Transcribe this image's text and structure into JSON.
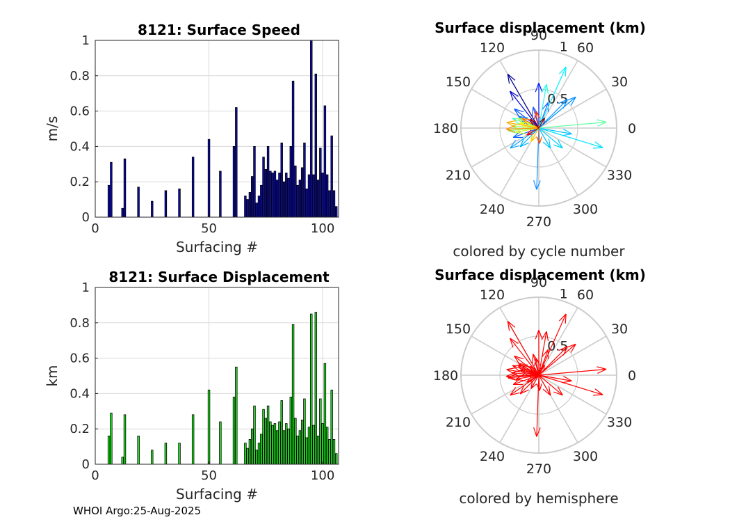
{
  "footer": "WHOI Argo:25-Aug-2025",
  "colors": {
    "speed_bar": "#0a0ab4",
    "disp_bar": "#22ee22",
    "hemisphere": "#ff0000",
    "grid": "#d9d9d9",
    "polar_grid": "#cccccc"
  },
  "chart_data": [
    {
      "type": "bar",
      "title": "8121: Surface Speed",
      "xlabel": "Surfacing #",
      "ylabel": "m/s",
      "xlim": [
        0,
        107
      ],
      "ylim": [
        0,
        1
      ],
      "xticks": [
        "0",
        "50",
        "100"
      ],
      "yticks": [
        "0",
        "0.2",
        "0.4",
        "0.6",
        "0.8",
        "1"
      ],
      "x": [
        6,
        7,
        12,
        13,
        19,
        25,
        31,
        37,
        43,
        50,
        55,
        61,
        62,
        66,
        67,
        68,
        69,
        70,
        71,
        72,
        73,
        74,
        75,
        76,
        77,
        78,
        79,
        80,
        81,
        82,
        83,
        84,
        85,
        86,
        87,
        88,
        89,
        90,
        91,
        92,
        93,
        94,
        95,
        96,
        97,
        98,
        99,
        100,
        101,
        102,
        103,
        104,
        105,
        106,
        107
      ],
      "values": [
        0.18,
        0.31,
        0.05,
        0.33,
        0.17,
        0.09,
        0.15,
        0.16,
        0.34,
        0.44,
        0.26,
        0.4,
        0.62,
        0.12,
        0.1,
        0.14,
        0.23,
        0.4,
        0.08,
        0.12,
        0.18,
        0.34,
        0.27,
        0.4,
        0.26,
        0.25,
        0.26,
        0.21,
        0.25,
        0.42,
        0.2,
        0.25,
        0.22,
        0.4,
        0.77,
        0.29,
        0.18,
        0.21,
        0.28,
        0.42,
        0.16,
        0.24,
        1.0,
        0.24,
        0.81,
        0.21,
        0.39,
        0.25,
        0.63,
        0.24,
        0.15,
        0.46,
        0.15,
        0.06,
        0.0
      ]
    },
    {
      "type": "bar",
      "title": "8121: Surface Displacement",
      "xlabel": "Surfacing #",
      "ylabel": "km",
      "xlim": [
        0,
        107
      ],
      "ylim": [
        0,
        1
      ],
      "xticks": [
        "0",
        "50",
        "100"
      ],
      "yticks": [
        "0",
        "0.2",
        "0.4",
        "0.6",
        "0.8",
        "1"
      ],
      "x": [
        6,
        7,
        12,
        13,
        19,
        25,
        31,
        37,
        43,
        50,
        55,
        61,
        62,
        66,
        67,
        68,
        69,
        70,
        71,
        72,
        73,
        74,
        75,
        76,
        77,
        78,
        79,
        80,
        81,
        82,
        83,
        84,
        85,
        86,
        87,
        88,
        89,
        90,
        91,
        92,
        93,
        94,
        95,
        96,
        97,
        98,
        99,
        100,
        101,
        102,
        103,
        104,
        105,
        106,
        107
      ],
      "values": [
        0.16,
        0.29,
        0.04,
        0.28,
        0.16,
        0.08,
        0.12,
        0.12,
        0.28,
        0.42,
        0.24,
        0.38,
        0.55,
        0.12,
        0.09,
        0.14,
        0.2,
        0.33,
        0.08,
        0.12,
        0.17,
        0.31,
        0.26,
        0.33,
        0.24,
        0.22,
        0.23,
        0.19,
        0.24,
        0.36,
        0.19,
        0.23,
        0.2,
        0.38,
        0.79,
        0.26,
        0.16,
        0.19,
        0.25,
        0.37,
        0.15,
        0.21,
        0.85,
        0.22,
        0.86,
        0.16,
        0.37,
        0.23,
        0.57,
        0.21,
        0.14,
        0.42,
        0.14,
        0.06,
        0.0
      ]
    },
    {
      "type": "polar",
      "title": "Surface displacement (km)",
      "caption": "colored by cycle number",
      "rmax": 1,
      "rticks": [
        "0.5",
        "1"
      ],
      "theta_labels": [
        "0",
        "30",
        "60",
        "90",
        "120",
        "150",
        "180",
        "210",
        "240",
        "270",
        "300",
        "330"
      ],
      "vectors": [
        {
          "angle": 120,
          "r": 0.8,
          "color": "#00008f"
        },
        {
          "angle": 128,
          "r": 0.6,
          "color": "#0000cc"
        },
        {
          "angle": 90,
          "r": 0.58,
          "color": "#0020ff"
        },
        {
          "angle": 142,
          "r": 0.4,
          "color": "#0050ff"
        },
        {
          "angle": 70,
          "r": 0.35,
          "color": "#2060ff"
        },
        {
          "angle": 200,
          "r": 0.35,
          "color": "#0060ff"
        },
        {
          "angle": 150,
          "r": 0.3,
          "color": "#0070ff"
        },
        {
          "angle": 105,
          "r": 0.28,
          "color": "#1a50ff"
        },
        {
          "angle": 45,
          "r": 0.52,
          "color": "#0090ff"
        },
        {
          "angle": 40,
          "r": 0.62,
          "color": "#0090ff"
        },
        {
          "angle": 268,
          "r": 0.79,
          "color": "#1090ff"
        },
        {
          "angle": 215,
          "r": 0.45,
          "color": "#10a0ff"
        },
        {
          "angle": 225,
          "r": 0.34,
          "color": "#00b0ff"
        },
        {
          "angle": 350,
          "r": 0.43,
          "color": "#00c0ff"
        },
        {
          "angle": 300,
          "r": 0.3,
          "color": "#00c8ff"
        },
        {
          "angle": 320,
          "r": 0.4,
          "color": "#00d0ff"
        },
        {
          "angle": 343,
          "r": 0.86,
          "color": "#00e0ff"
        },
        {
          "angle": 66,
          "r": 0.86,
          "color": "#00f0ff"
        },
        {
          "angle": 80,
          "r": 0.57,
          "color": "#20ffe0"
        },
        {
          "angle": 160,
          "r": 0.36,
          "color": "#40ffc0"
        },
        {
          "angle": 5,
          "r": 0.87,
          "color": "#60ffa0"
        },
        {
          "angle": 185,
          "r": 0.4,
          "color": "#80ff80"
        },
        {
          "angle": 175,
          "r": 0.35,
          "color": "#a0ff60"
        },
        {
          "angle": 155,
          "r": 0.3,
          "color": "#b0ff40"
        },
        {
          "angle": 190,
          "r": 0.3,
          "color": "#d0ff20"
        },
        {
          "angle": 165,
          "r": 0.25,
          "color": "#ffff00"
        },
        {
          "angle": 240,
          "r": 0.2,
          "color": "#ffd000"
        },
        {
          "angle": 170,
          "r": 0.42,
          "color": "#ffb000"
        },
        {
          "angle": 182,
          "r": 0.42,
          "color": "#ff9000"
        },
        {
          "angle": 150,
          "r": 0.25,
          "color": "#ff7000"
        },
        {
          "angle": 273,
          "r": 0.2,
          "color": "#ff5000"
        },
        {
          "angle": 100,
          "r": 0.22,
          "color": "#ff3000"
        },
        {
          "angle": 210,
          "r": 0.18,
          "color": "#e00000"
        },
        {
          "angle": 135,
          "r": 0.16,
          "color": "#b00000"
        },
        {
          "angle": 60,
          "r": 0.15,
          "color": "#800000"
        }
      ]
    },
    {
      "type": "polar",
      "title": "Surface displacement (km)",
      "caption": "colored by hemisphere",
      "rmax": 1,
      "rticks": [
        "0.5",
        "1"
      ],
      "theta_labels": [
        "0",
        "30",
        "60",
        "90",
        "120",
        "150",
        "180",
        "210",
        "240",
        "270",
        "300",
        "330"
      ],
      "vectors": [
        {
          "angle": 120,
          "r": 0.8,
          "color": "#ff0000"
        },
        {
          "angle": 128,
          "r": 0.6,
          "color": "#ff0000"
        },
        {
          "angle": 90,
          "r": 0.58,
          "color": "#ff0000"
        },
        {
          "angle": 142,
          "r": 0.4,
          "color": "#ff0000"
        },
        {
          "angle": 70,
          "r": 0.35,
          "color": "#ff0000"
        },
        {
          "angle": 200,
          "r": 0.35,
          "color": "#ff0000"
        },
        {
          "angle": 150,
          "r": 0.3,
          "color": "#ff0000"
        },
        {
          "angle": 105,
          "r": 0.28,
          "color": "#ff0000"
        },
        {
          "angle": 45,
          "r": 0.52,
          "color": "#ff0000"
        },
        {
          "angle": 40,
          "r": 0.62,
          "color": "#ff0000"
        },
        {
          "angle": 268,
          "r": 0.79,
          "color": "#ff0000"
        },
        {
          "angle": 215,
          "r": 0.45,
          "color": "#ff0000"
        },
        {
          "angle": 225,
          "r": 0.34,
          "color": "#ff0000"
        },
        {
          "angle": 350,
          "r": 0.43,
          "color": "#ff0000"
        },
        {
          "angle": 300,
          "r": 0.3,
          "color": "#ff0000"
        },
        {
          "angle": 320,
          "r": 0.4,
          "color": "#ff0000"
        },
        {
          "angle": 343,
          "r": 0.86,
          "color": "#ff0000"
        },
        {
          "angle": 66,
          "r": 0.86,
          "color": "#ff0000"
        },
        {
          "angle": 80,
          "r": 0.57,
          "color": "#ff0000"
        },
        {
          "angle": 160,
          "r": 0.36,
          "color": "#ff0000"
        },
        {
          "angle": 5,
          "r": 0.87,
          "color": "#ff0000"
        },
        {
          "angle": 185,
          "r": 0.4,
          "color": "#ff0000"
        },
        {
          "angle": 175,
          "r": 0.35,
          "color": "#ff0000"
        },
        {
          "angle": 155,
          "r": 0.3,
          "color": "#ff0000"
        },
        {
          "angle": 190,
          "r": 0.3,
          "color": "#ff0000"
        },
        {
          "angle": 165,
          "r": 0.25,
          "color": "#ff0000"
        },
        {
          "angle": 240,
          "r": 0.2,
          "color": "#ff0000"
        },
        {
          "angle": 170,
          "r": 0.42,
          "color": "#ff0000"
        },
        {
          "angle": 182,
          "r": 0.42,
          "color": "#ff0000"
        },
        {
          "angle": 150,
          "r": 0.25,
          "color": "#ff0000"
        },
        {
          "angle": 273,
          "r": 0.2,
          "color": "#ff0000"
        },
        {
          "angle": 100,
          "r": 0.22,
          "color": "#ff0000"
        },
        {
          "angle": 210,
          "r": 0.18,
          "color": "#ff0000"
        },
        {
          "angle": 135,
          "r": 0.16,
          "color": "#ff0000"
        },
        {
          "angle": 60,
          "r": 0.15,
          "color": "#ff0000"
        }
      ]
    }
  ]
}
